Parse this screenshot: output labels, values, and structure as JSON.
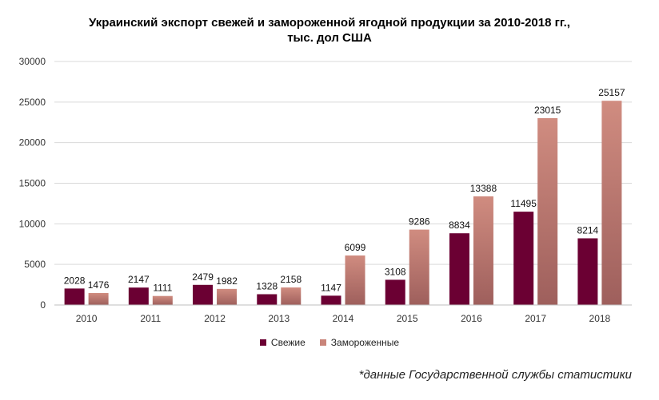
{
  "chart_data": {
    "type": "bar",
    "title_line1": "Украинский экспорт свежей и замороженной ягодной продукции за 2010-2018 гг.,",
    "title_line2": "тыс. дол США",
    "categories": [
      "2010",
      "2011",
      "2012",
      "2013",
      "2014",
      "2015",
      "2016",
      "2017",
      "2018"
    ],
    "series": [
      {
        "name": "Свежие",
        "color": "#6b0033",
        "values": [
          2028,
          2147,
          2479,
          1328,
          1147,
          3108,
          8834,
          11495,
          8214
        ]
      },
      {
        "name": "Замороженные",
        "color": "#c9857a",
        "values": [
          1476,
          1111,
          1982,
          2158,
          6099,
          9286,
          13388,
          23015,
          25157
        ]
      }
    ],
    "ylim": [
      0,
      30000
    ],
    "yticks": [
      "0",
      "5000",
      "10000",
      "15000",
      "20000",
      "25000",
      "30000"
    ],
    "grid": true,
    "legend_position": "bottom"
  },
  "footnote": "*данные Государственной службы статистики"
}
